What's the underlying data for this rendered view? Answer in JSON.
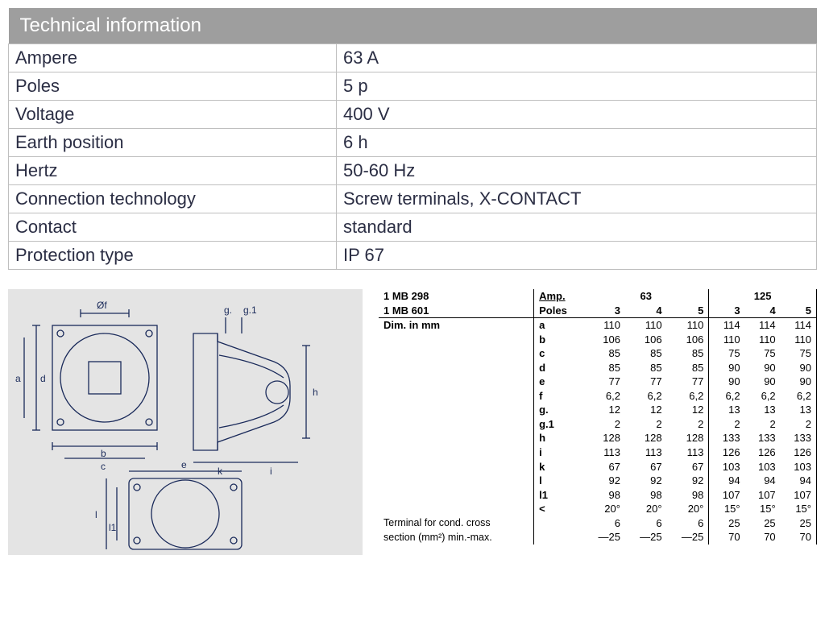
{
  "colors": {
    "header_bg": "#9e9e9e",
    "header_text": "#ffffff",
    "cell_border": "#bfbfbf",
    "body_text": "#2b2e44",
    "drawing_bg": "#e4e4e4",
    "drawing_line": "#1a2a5a",
    "dim_text": "#000000"
  },
  "spec": {
    "title": "Technical information",
    "rows": [
      {
        "label": "Ampere",
        "value": "63 A"
      },
      {
        "label": "Poles",
        "value": "5 p"
      },
      {
        "label": "Voltage",
        "value": "400 V"
      },
      {
        "label": "Earth position",
        "value": "6 h"
      },
      {
        "label": "Hertz",
        "value": "50-60 Hz"
      },
      {
        "label": "Connection technology",
        "value": "Screw terminals, X-CONTACT"
      },
      {
        "label": "Contact",
        "value": "standard"
      },
      {
        "label": "Protection type",
        "value": " IP 67"
      }
    ]
  },
  "dimensions": {
    "models": [
      "1 MB 298",
      "1 MB 601"
    ],
    "amp_label": "Amp.",
    "poles_label": "Poles",
    "dim_in_mm": "Dim. in mm",
    "amp_groups": [
      "63",
      "125"
    ],
    "poles": [
      "3",
      "4",
      "5",
      "3",
      "4",
      "5"
    ],
    "rows": [
      {
        "k": "a",
        "v": [
          "110",
          "110",
          "110",
          "114",
          "114",
          "114"
        ]
      },
      {
        "k": "b",
        "v": [
          "106",
          "106",
          "106",
          "110",
          "110",
          "110"
        ]
      },
      {
        "k": "c",
        "v": [
          "85",
          "85",
          "85",
          "75",
          "75",
          "75"
        ]
      },
      {
        "k": "d",
        "v": [
          "85",
          "85",
          "85",
          "90",
          "90",
          "90"
        ]
      },
      {
        "k": "e",
        "v": [
          "77",
          "77",
          "77",
          "90",
          "90",
          "90"
        ]
      },
      {
        "k": "f",
        "v": [
          "6,2",
          "6,2",
          "6,2",
          "6,2",
          "6,2",
          "6,2"
        ]
      },
      {
        "k": "g.",
        "v": [
          "12",
          "12",
          "12",
          "13",
          "13",
          "13"
        ]
      },
      {
        "k": "g.1",
        "v": [
          "2",
          "2",
          "2",
          "2",
          "2",
          "2"
        ]
      },
      {
        "k": "h",
        "v": [
          "128",
          "128",
          "128",
          "133",
          "133",
          "133"
        ]
      },
      {
        "k": "i",
        "v": [
          "113",
          "113",
          "113",
          "126",
          "126",
          "126"
        ]
      },
      {
        "k": "k",
        "v": [
          "67",
          "67",
          "67",
          "103",
          "103",
          "103"
        ]
      },
      {
        "k": "l",
        "v": [
          "92",
          "92",
          "92",
          "94",
          "94",
          "94"
        ]
      },
      {
        "k": "l1",
        "v": [
          "98",
          "98",
          "98",
          "107",
          "107",
          "107"
        ]
      },
      {
        "k": "<",
        "v": [
          "20°",
          "20°",
          "20°",
          "15°",
          "15°",
          "15°"
        ]
      }
    ],
    "terminal_label_line1": "Terminal for cond. cross",
    "terminal_label_line2": "section (mm²) min.-max.",
    "terminal_rows": [
      [
        "6",
        "6",
        "6",
        "25",
        "25",
        "25"
      ],
      [
        "—25",
        "—25",
        "—25",
        "70",
        "70",
        "70"
      ]
    ]
  },
  "drawing_labels": {
    "diam_f": "Øf",
    "g": "g.",
    "g1": "g.1",
    "a": "a",
    "b": "b",
    "c": "c",
    "d": "d",
    "e": "e",
    "h": "h",
    "i": "i",
    "k": "k",
    "l": "l",
    "l1": "l1"
  }
}
